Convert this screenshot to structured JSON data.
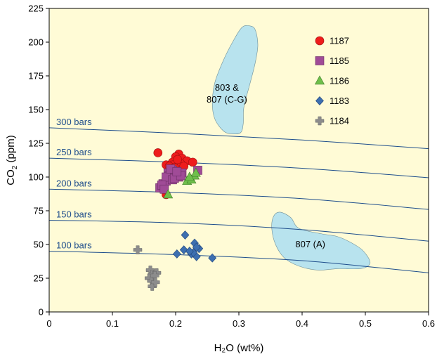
{
  "chart_data": {
    "type": "scatter",
    "xlabel": "H₂O (wt%)",
    "ylabel_main": "CO",
    "ylabel_sub": "2",
    "ylabel_unit": " (ppm)",
    "xlim": [
      0,
      0.6
    ],
    "ylim": [
      0,
      225
    ],
    "x_ticks": [
      0,
      0.1,
      0.2,
      0.3,
      0.4,
      0.5,
      0.6
    ],
    "x_tick_labels": [
      "0",
      "0.1",
      "0.2",
      "0.3",
      "0.4",
      "0.5",
      "0.6"
    ],
    "y_ticks": [
      0,
      25,
      50,
      75,
      100,
      125,
      150,
      175,
      200,
      225
    ],
    "y_tick_labels": [
      "0",
      "25",
      "50",
      "75",
      "100",
      "125",
      "150",
      "175",
      "200",
      "225"
    ],
    "background_color": "#fffbd6",
    "legend_position": "top-right",
    "isobars": [
      {
        "label": "300 bars",
        "points": [
          [
            0,
            136.5
          ],
          [
            0.2,
            132.5
          ],
          [
            0.4,
            127.5
          ],
          [
            0.6,
            121
          ]
        ]
      },
      {
        "label": "250 bars",
        "points": [
          [
            0,
            114
          ],
          [
            0.2,
            111
          ],
          [
            0.4,
            106.5
          ],
          [
            0.6,
            99.5
          ]
        ]
      },
      {
        "label": "200 bars",
        "points": [
          [
            0,
            91
          ],
          [
            0.2,
            88.5
          ],
          [
            0.4,
            84
          ],
          [
            0.6,
            76
          ]
        ]
      },
      {
        "label": "150 bars",
        "points": [
          [
            0,
            68
          ],
          [
            0.2,
            66
          ],
          [
            0.4,
            61
          ],
          [
            0.6,
            52.5
          ]
        ]
      },
      {
        "label": "100 bars",
        "points": [
          [
            0,
            45
          ],
          [
            0.2,
            42.5
          ],
          [
            0.4,
            38
          ],
          [
            0.6,
            29
          ]
        ]
      }
    ],
    "isobar_color": "#1f4e8c",
    "fields": [
      {
        "label_lines": [
          "803 &",
          "807 (C-G)"
        ],
        "label_at": [
          0.281,
          164
        ],
        "color": "#b8e3ee",
        "outline": [
          [
            0.318,
            212
          ],
          [
            0.305,
            211
          ],
          [
            0.29,
            200
          ],
          [
            0.275,
            186
          ],
          [
            0.262,
            170
          ],
          [
            0.258,
            155
          ],
          [
            0.262,
            143
          ],
          [
            0.276,
            134
          ],
          [
            0.29,
            132
          ],
          [
            0.303,
            133
          ],
          [
            0.307,
            140
          ],
          [
            0.308,
            152
          ],
          [
            0.318,
            170
          ],
          [
            0.326,
            185
          ],
          [
            0.33,
            198
          ],
          [
            0.326,
            209
          ]
        ]
      },
      {
        "label_lines": [
          "807 (A)"
        ],
        "label_at": [
          0.413,
          48
        ],
        "color": "#b8e3ee",
        "outline": [
          [
            0.365,
            74
          ],
          [
            0.355,
            71
          ],
          [
            0.352,
            62
          ],
          [
            0.358,
            50
          ],
          [
            0.372,
            40
          ],
          [
            0.395,
            34
          ],
          [
            0.425,
            31
          ],
          [
            0.455,
            32
          ],
          [
            0.49,
            32
          ],
          [
            0.504,
            34
          ],
          [
            0.507,
            38
          ],
          [
            0.495,
            46
          ],
          [
            0.475,
            52
          ],
          [
            0.455,
            56
          ],
          [
            0.43,
            58
          ],
          [
            0.395,
            62
          ],
          [
            0.382,
            70
          ]
        ]
      }
    ],
    "series": [
      {
        "name": "1187",
        "marker": "circle",
        "color": "#ee1c1c",
        "x": [
          0.172,
          0.205,
          0.2,
          0.195,
          0.21,
          0.218,
          0.208,
          0.196,
          0.227,
          0.185,
          0.19,
          0.198,
          0.213,
          0.185,
          0.203
        ],
        "y": [
          118,
          117,
          115,
          111,
          114,
          112,
          110,
          109,
          111,
          109,
          108,
          107,
          108,
          87,
          113
        ]
      },
      {
        "name": "1185",
        "marker": "square",
        "color": "#a04b97",
        "x": [
          0.175,
          0.18,
          0.185,
          0.188,
          0.19,
          0.195,
          0.2,
          0.205,
          0.21,
          0.185,
          0.195,
          0.178,
          0.192,
          0.198,
          0.208,
          0.235,
          0.182,
          0.202
        ],
        "y": [
          92,
          95,
          97,
          103,
          101,
          105,
          103,
          100,
          103,
          100,
          98,
          94,
          106,
          99,
          101,
          105,
          91,
          104
        ]
      },
      {
        "name": "1186",
        "marker": "triangle",
        "color": "#6fbf4b",
        "x": [
          0.188,
          0.218,
          0.225,
          0.23,
          0.232,
          0.222
        ],
        "y": [
          87,
          97,
          98,
          101,
          103,
          100
        ]
      },
      {
        "name": "1183",
        "marker": "diamond",
        "color": "#3d6fb0",
        "x": [
          0.202,
          0.213,
          0.215,
          0.225,
          0.23,
          0.233,
          0.237,
          0.228,
          0.258,
          0.222,
          0.233
        ],
        "y": [
          43,
          46,
          57,
          43,
          51,
          41,
          47,
          44,
          40,
          45,
          48
        ]
      },
      {
        "name": "1184",
        "marker": "plus",
        "color": "#8c8c8c",
        "x": [
          0.14,
          0.16,
          0.163,
          0.17,
          0.158,
          0.162,
          0.167,
          0.163,
          0.168
        ],
        "y": [
          46,
          31,
          28,
          29,
          25,
          23,
          27,
          19,
          22
        ]
      }
    ]
  }
}
